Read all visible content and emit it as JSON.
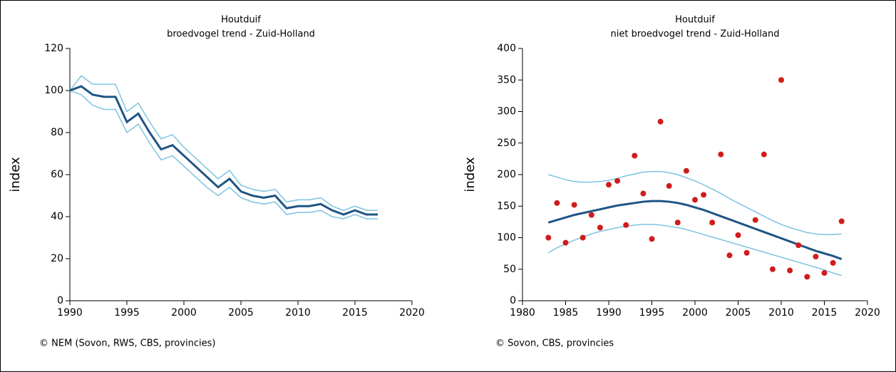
{
  "chart_data": [
    {
      "type": "line",
      "title": "Houtduif",
      "subtitle": "broedvogel trend - Zuid-Holland",
      "y_label": "index",
      "source": "© NEM (Sovon, RWS, CBS, provincies)",
      "x": [
        1990,
        1991,
        1992,
        1993,
        1994,
        1995,
        1996,
        1997,
        1998,
        1999,
        2000,
        2001,
        2002,
        2003,
        2004,
        2005,
        2006,
        2007,
        2008,
        2009,
        2010,
        2011,
        2012,
        2013,
        2014,
        2015,
        2016,
        2017
      ],
      "xlim": [
        1990,
        2020
      ],
      "xticks": [
        1990,
        1995,
        2000,
        2005,
        2010,
        2015,
        2020
      ],
      "ylim": [
        0,
        120
      ],
      "yticks": [
        0,
        20,
        40,
        60,
        80,
        100,
        120
      ],
      "series": [
        {
          "mark": "line",
          "color": "#7ec3e0",
          "values": [
            100,
            107,
            103,
            103,
            103,
            90,
            94,
            85,
            77,
            79,
            73,
            68,
            63,
            58,
            62,
            55,
            53,
            52,
            53,
            47,
            48,
            48,
            49,
            45,
            43,
            45,
            43,
            43
          ]
        },
        {
          "mark": "line",
          "color": "#7ec3e0",
          "values": [
            100,
            98,
            93,
            91,
            91,
            80,
            84,
            75,
            67,
            69,
            64,
            59,
            54,
            50,
            54,
            49,
            47,
            46,
            47,
            41,
            42,
            42,
            43,
            40,
            39,
            41,
            39,
            39
          ]
        },
        {
          "mark": "line",
          "color": "#1f5485",
          "values": [
            100,
            102,
            98,
            97,
            97,
            85,
            89,
            80,
            72,
            74,
            69,
            64,
            59,
            54,
            58,
            52,
            50,
            49,
            50,
            44,
            45,
            45,
            46,
            43,
            41,
            43,
            41,
            41
          ]
        }
      ]
    },
    {
      "type": "scatter",
      "title": "Houtduif",
      "subtitle": "niet broedvogel trend - Zuid-Holland",
      "y_label": "index",
      "source": "© Sovon, CBS, provincies",
      "x": [
        1983,
        1984,
        1985,
        1986,
        1987,
        1988,
        1989,
        1990,
        1991,
        1992,
        1993,
        1994,
        1995,
        1996,
        1997,
        1998,
        1999,
        2000,
        2001,
        2002,
        2003,
        2004,
        2005,
        2006,
        2007,
        2008,
        2009,
        2010,
        2011,
        2012,
        2013,
        2014,
        2015,
        2016,
        2017
      ],
      "xlim": [
        1980,
        2020
      ],
      "xticks": [
        1980,
        1985,
        1990,
        1995,
        2000,
        2005,
        2010,
        2015,
        2020
      ],
      "ylim": [
        0,
        400
      ],
      "yticks": [
        0,
        50,
        100,
        150,
        200,
        250,
        300,
        350,
        400
      ],
      "series": [
        {
          "mark": "line",
          "color": "#7ec3e0",
          "values": [
            200,
            196,
            192,
            189,
            188,
            188,
            189,
            191,
            194,
            198,
            201,
            204,
            205,
            205,
            203,
            200,
            195,
            190,
            184,
            177,
            170,
            162,
            155,
            148,
            141,
            134,
            127,
            121,
            116,
            112,
            108,
            106,
            105,
            105,
            106
          ]
        },
        {
          "mark": "line",
          "color": "#7ec3e0",
          "values": [
            76,
            84,
            90,
            96,
            101,
            106,
            110,
            113,
            116,
            118,
            120,
            121,
            121,
            120,
            118,
            116,
            113,
            109,
            105,
            101,
            97,
            93,
            89,
            85,
            81,
            77,
            73,
            69,
            65,
            61,
            57,
            53,
            49,
            44,
            40
          ]
        },
        {
          "mark": "line",
          "color": "#1f5485",
          "values": [
            124,
            128,
            132,
            136,
            139,
            142,
            145,
            148,
            151,
            153,
            155,
            157,
            158,
            158,
            157,
            155,
            152,
            148,
            144,
            139,
            134,
            129,
            124,
            119,
            114,
            109,
            104,
            99,
            94,
            89,
            84,
            79,
            75,
            71,
            66
          ]
        },
        {
          "mark": "point",
          "color": "#d01c1c",
          "values": [
            100,
            155,
            92,
            152,
            100,
            136,
            116,
            184,
            190,
            120,
            230,
            170,
            98,
            284,
            182,
            124,
            206,
            160,
            168,
            124,
            232,
            72,
            104,
            76,
            128,
            232,
            50,
            350,
            48,
            88,
            38,
            70,
            44,
            60,
            126
          ]
        }
      ]
    }
  ]
}
